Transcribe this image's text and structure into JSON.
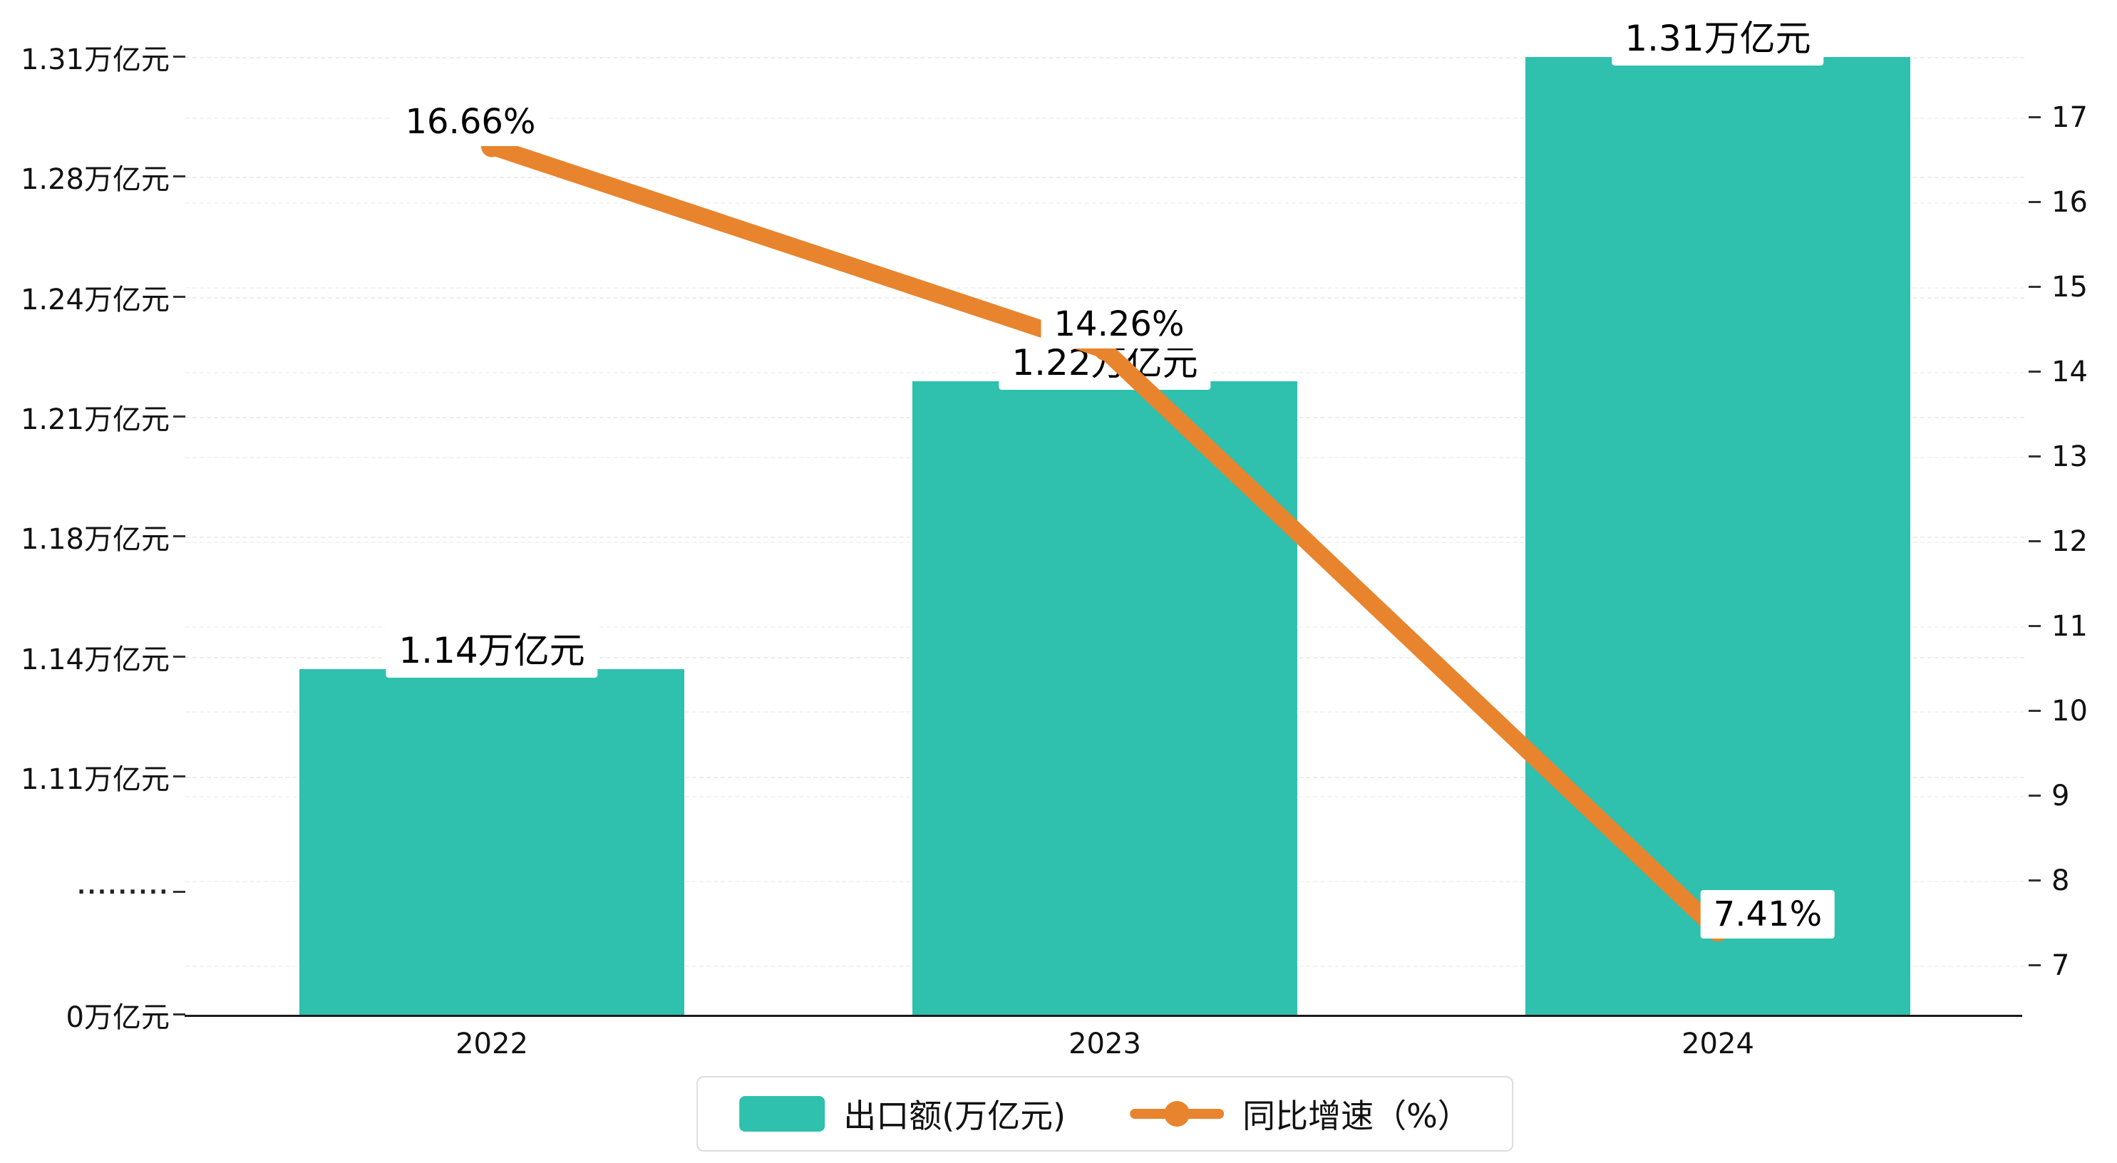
{
  "chart_data": {
    "type": "bar+line",
    "title": "",
    "categories": [
      "2022",
      "2023",
      "2024"
    ],
    "series": [
      {
        "name": "出口额(万亿元)",
        "type": "bar",
        "color": "#2fc0ae",
        "values": [
          1.14,
          1.22,
          1.31
        ],
        "labels": [
          "1.14万亿元",
          "1.22万亿元",
          "1.31万亿元"
        ]
      },
      {
        "name": "同比增速（%）",
        "type": "line",
        "color": "#e8842d",
        "values": [
          16.66,
          14.26,
          7.41
        ],
        "labels": [
          "16.66%",
          "14.26%",
          "7.41%"
        ]
      }
    ],
    "left_axis": {
      "ticks": [
        "1.31万亿元",
        "1.28万亿元",
        "1.24万亿元",
        "1.21万亿元",
        "1.18万亿元",
        "1.14万亿元",
        "1.11万亿元",
        "·········",
        "0万亿元"
      ],
      "value_ticks": [
        1.31,
        1.28,
        1.24,
        1.21,
        1.18,
        1.14,
        1.11
      ],
      "range_top": 1.31,
      "range_break": 1.11,
      "has_break": true
    },
    "right_axis": {
      "min": 7,
      "max": 17,
      "ticks": [
        17,
        16,
        15,
        14,
        13,
        12,
        11,
        10,
        9,
        8,
        7
      ]
    },
    "x_axis": {
      "labels": [
        "2022",
        "2023",
        "2024"
      ]
    },
    "legend": {
      "position": "bottom",
      "items": [
        {
          "label": "出口额(万亿元)",
          "marker": "bar-swatch",
          "color": "#2fc0ae"
        },
        {
          "label": "同比增速（%）",
          "marker": "line-dot",
          "color": "#e8842d"
        }
      ]
    }
  }
}
